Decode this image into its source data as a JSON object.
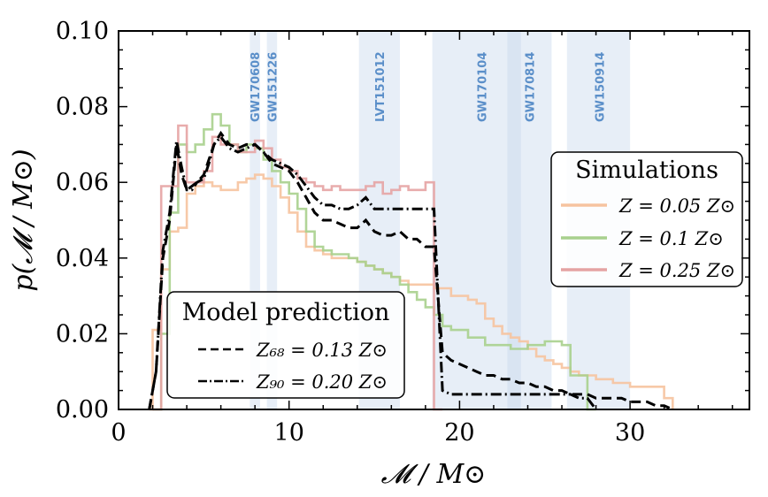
{
  "chart_data": {
    "type": "line",
    "xlabel": "𝓜 / M⊙",
    "ylabel": "p(𝓜 / M⊙)",
    "xlim": [
      0,
      37
    ],
    "ylim": [
      0,
      0.1
    ],
    "x_ticks": [
      0,
      10,
      20,
      30
    ],
    "x_tick_labels": [
      "0",
      "10",
      "20",
      "30"
    ],
    "y_ticks": [
      0,
      0.02,
      0.04,
      0.06,
      0.08,
      0.1
    ],
    "y_tick_labels": [
      "0.00",
      "0.02",
      "0.04",
      "0.06",
      "0.08",
      "0.10"
    ],
    "grid": false,
    "events": [
      {
        "name": "GW170608",
        "range": [
          7.7,
          8.3
        ],
        "label_x": 8.0
      },
      {
        "name": "GW151226",
        "range": [
          8.7,
          9.3
        ],
        "label_x": 9.0
      },
      {
        "name": "LVT151012",
        "range": [
          14.1,
          16.5
        ],
        "label_x": 15.3
      },
      {
        "name": "GW170104",
        "range": [
          18.4,
          25.4
        ],
        "label_x": 21.3
      },
      {
        "name": "GW170814",
        "range": [
          22.8,
          23.6
        ],
        "label_x": 24.1
      },
      {
        "name": "GW150914",
        "range": [
          26.3,
          30.0
        ],
        "label_x": 28.2
      }
    ],
    "simulations_legend": {
      "title": "Simulations",
      "position": "upper-right",
      "entries": [
        "Z = 0.05 Z⊙",
        "Z = 0.1 Z⊙",
        "Z = 0.25 Z⊙"
      ]
    },
    "model_legend": {
      "title": "Model prediction",
      "position": "lower-left",
      "entries": [
        "Z₆₈ = 0.13 Z⊙",
        "Z₉₀ = 0.20 Z⊙"
      ]
    },
    "series": [
      {
        "name": "Z = 0.05 Z⊙",
        "color": "#f6c39f",
        "style": "step",
        "x": [
          1.8,
          2.0,
          2.5,
          3.0,
          3.5,
          4.0,
          4.5,
          5.0,
          5.5,
          6.0,
          6.5,
          7.0,
          7.5,
          8.0,
          8.5,
          9.0,
          9.5,
          10.0,
          10.5,
          11.0,
          11.5,
          12.0,
          12.5,
          13.0,
          13.5,
          14.0,
          14.5,
          15.0,
          15.5,
          16.0,
          16.5,
          17.0,
          17.5,
          18.0,
          18.5,
          19.0,
          19.5,
          20.0,
          20.5,
          21.0,
          21.5,
          22.0,
          22.5,
          23.0,
          23.5,
          24.0,
          24.5,
          25.0,
          25.5,
          26.0,
          26.5,
          27.0,
          27.5,
          28.0,
          28.5,
          29.0,
          29.5,
          30.0,
          30.5,
          31.0,
          31.5,
          32.0,
          32.5
        ],
        "y": [
          0.0,
          0.021,
          0.037,
          0.047,
          0.048,
          0.057,
          0.059,
          0.06,
          0.059,
          0.058,
          0.058,
          0.06,
          0.061,
          0.062,
          0.061,
          0.059,
          0.056,
          0.052,
          0.047,
          0.043,
          0.042,
          0.041,
          0.04,
          0.04,
          0.04,
          0.039,
          0.038,
          0.037,
          0.036,
          0.035,
          0.034,
          0.033,
          0.033,
          0.033,
          0.032,
          0.032,
          0.03,
          0.03,
          0.029,
          0.028,
          0.024,
          0.022,
          0.02,
          0.019,
          0.018,
          0.016,
          0.014,
          0.013,
          0.012,
          0.011,
          0.01,
          0.009,
          0.009,
          0.008,
          0.008,
          0.007,
          0.007,
          0.006,
          0.006,
          0.006,
          0.006,
          0.003,
          0.0
        ]
      },
      {
        "name": "Z = 0.1 Z⊙",
        "color": "#a8d08d",
        "style": "step",
        "x": [
          2.0,
          2.5,
          3.0,
          3.5,
          4.0,
          4.5,
          5.0,
          5.5,
          6.0,
          6.5,
          7.0,
          7.5,
          8.0,
          8.5,
          9.0,
          9.5,
          10.0,
          10.5,
          11.0,
          11.5,
          12.0,
          12.5,
          13.0,
          13.5,
          14.0,
          14.5,
          15.0,
          15.5,
          16.0,
          16.5,
          17.0,
          17.5,
          18.0,
          18.5,
          19.0,
          19.5,
          20.0,
          20.5,
          21.0,
          21.5,
          22.0,
          22.5,
          23.0,
          23.5,
          24.0,
          24.5,
          25.0,
          25.5,
          26.0,
          26.5,
          27.0,
          27.5,
          28.0
        ],
        "y": [
          0.0,
          0.02,
          0.052,
          0.07,
          0.068,
          0.07,
          0.074,
          0.078,
          0.075,
          0.07,
          0.068,
          0.07,
          0.069,
          0.066,
          0.063,
          0.06,
          0.057,
          0.053,
          0.047,
          0.043,
          0.042,
          0.041,
          0.041,
          0.04,
          0.039,
          0.038,
          0.037,
          0.036,
          0.035,
          0.033,
          0.031,
          0.029,
          0.027,
          0.025,
          0.022,
          0.021,
          0.021,
          0.019,
          0.019,
          0.017,
          0.017,
          0.017,
          0.016,
          0.016,
          0.017,
          0.017,
          0.018,
          0.018,
          0.017,
          0.009,
          0.009,
          0.0,
          0.0
        ]
      },
      {
        "name": "Z = 0.25 Z⊙",
        "color": "#e5a3a3",
        "style": "step",
        "x": [
          2.0,
          2.5,
          3.0,
          3.5,
          4.0,
          4.5,
          5.0,
          5.5,
          6.0,
          6.5,
          7.0,
          7.5,
          8.0,
          8.5,
          9.0,
          9.5,
          10.0,
          10.5,
          11.0,
          11.5,
          12.0,
          12.5,
          13.0,
          13.5,
          14.0,
          14.5,
          15.0,
          15.5,
          16.0,
          16.5,
          17.0,
          17.5,
          18.0,
          18.5,
          19.0
        ],
        "y": [
          0.0,
          0.059,
          0.059,
          0.075,
          0.06,
          0.06,
          0.063,
          0.072,
          0.07,
          0.07,
          0.068,
          0.068,
          0.071,
          0.069,
          0.066,
          0.064,
          0.063,
          0.061,
          0.06,
          0.059,
          0.058,
          0.059,
          0.058,
          0.058,
          0.058,
          0.059,
          0.06,
          0.057,
          0.058,
          0.059,
          0.058,
          0.058,
          0.06,
          0.0,
          0.0
        ]
      },
      {
        "name": "Z₆₈ = 0.13 Z⊙",
        "color": "#000000",
        "style": "dashed",
        "x": [
          1.8,
          2.2,
          2.6,
          3.0,
          3.4,
          3.7,
          4.0,
          4.3,
          4.6,
          5.0,
          5.3,
          5.6,
          6.0,
          6.5,
          7.0,
          7.5,
          8.0,
          8.5,
          9.0,
          9.5,
          10.0,
          10.5,
          11.0,
          11.5,
          12.0,
          12.5,
          13.0,
          13.5,
          14.0,
          14.5,
          15.0,
          15.5,
          16.0,
          16.5,
          17.0,
          17.5,
          18.0,
          18.5,
          19.0,
          19.5,
          20.0,
          20.5,
          21.0,
          21.5,
          22.0,
          22.5,
          23.0,
          23.5,
          24.0,
          24.5,
          25.0,
          25.5,
          26.0,
          26.5,
          27.0,
          27.5,
          28.0,
          28.5,
          29.0,
          29.5,
          30.0,
          30.5,
          31.0,
          31.5,
          32.0,
          32.5
        ],
        "y": [
          0.0,
          0.01,
          0.04,
          0.05,
          0.07,
          0.062,
          0.058,
          0.059,
          0.06,
          0.062,
          0.066,
          0.07,
          0.073,
          0.07,
          0.069,
          0.07,
          0.07,
          0.068,
          0.065,
          0.064,
          0.063,
          0.06,
          0.056,
          0.052,
          0.05,
          0.05,
          0.049,
          0.048,
          0.048,
          0.05,
          0.047,
          0.046,
          0.046,
          0.047,
          0.045,
          0.045,
          0.043,
          0.043,
          0.015,
          0.013,
          0.012,
          0.011,
          0.01,
          0.009,
          0.009,
          0.008,
          0.008,
          0.007,
          0.007,
          0.006,
          0.006,
          0.005,
          0.005,
          0.004,
          0.004,
          0.004,
          0.003,
          0.003,
          0.003,
          0.003,
          0.002,
          0.002,
          0.002,
          0.001,
          0.001,
          0.0
        ]
      },
      {
        "name": "Z₉₀ = 0.20 Z⊙",
        "color": "#000000",
        "style": "dashdot",
        "x": [
          1.8,
          2.2,
          2.6,
          3.0,
          3.4,
          3.7,
          4.0,
          4.3,
          4.6,
          5.0,
          5.3,
          5.6,
          6.0,
          6.5,
          7.0,
          7.5,
          8.0,
          8.5,
          9.0,
          9.5,
          10.0,
          10.5,
          11.0,
          11.5,
          12.0,
          12.5,
          13.0,
          13.5,
          14.0,
          14.5,
          15.0,
          15.5,
          16.0,
          16.5,
          17.0,
          17.5,
          18.0,
          18.5,
          19.0,
          19.5,
          20.0,
          20.5,
          21.0,
          21.5,
          22.0,
          22.5,
          23.0,
          23.5,
          24.0,
          24.5,
          25.0,
          25.5,
          26.0,
          26.5,
          27.0,
          27.5,
          28.0
        ],
        "y": [
          0.0,
          0.01,
          0.042,
          0.052,
          0.071,
          0.064,
          0.058,
          0.058,
          0.06,
          0.061,
          0.065,
          0.07,
          0.072,
          0.069,
          0.068,
          0.069,
          0.07,
          0.068,
          0.066,
          0.065,
          0.064,
          0.062,
          0.059,
          0.056,
          0.054,
          0.054,
          0.053,
          0.053,
          0.054,
          0.056,
          0.053,
          0.053,
          0.053,
          0.053,
          0.053,
          0.053,
          0.053,
          0.053,
          0.005,
          0.004,
          0.004,
          0.004,
          0.004,
          0.004,
          0.004,
          0.004,
          0.004,
          0.004,
          0.004,
          0.004,
          0.004,
          0.004,
          0.004,
          0.004,
          0.003,
          0.003,
          0.0
        ]
      }
    ]
  }
}
